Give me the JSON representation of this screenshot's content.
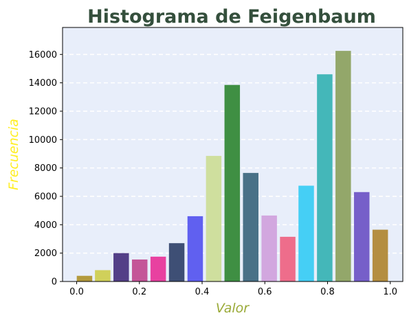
{
  "chart_data": {
    "type": "bar",
    "title": "Histograma de Feigenbaum",
    "xlabel": "Valor",
    "ylabel": "Frecuencia",
    "x": [
      0.025,
      0.083,
      0.142,
      0.201,
      0.26,
      0.319,
      0.378,
      0.437,
      0.496,
      0.555,
      0.614,
      0.673,
      0.732,
      0.791,
      0.85,
      0.909,
      0.968
    ],
    "values": [
      400,
      800,
      2000,
      1550,
      1750,
      2700,
      4600,
      8850,
      13850,
      7650,
      4650,
      3150,
      6750,
      14600,
      16250,
      6300,
      3650
    ],
    "colors": [
      "#b39a3d",
      "#d0d05a",
      "#533f87",
      "#c45598",
      "#e841a0",
      "#3e4f75",
      "#6060f0",
      "#cfdf9e",
      "#3f8f43",
      "#497187",
      "#d2a7df",
      "#ee6d8b",
      "#45cff5",
      "#44b7b9",
      "#93a76a",
      "#765fc9",
      "#b48e41"
    ],
    "xlim": [
      -0.045,
      1.04
    ],
    "ylim": [
      0,
      17900
    ],
    "xticks": [
      0.0,
      0.2,
      0.4,
      0.6,
      0.8,
      1.0
    ],
    "xtick_labels": [
      "0.0",
      "0.2",
      "0.4",
      "0.6",
      "0.8",
      "1.0"
    ],
    "yticks": [
      0,
      2000,
      4000,
      6000,
      8000,
      10000,
      12000,
      14000,
      16000
    ],
    "ytick_labels": [
      "0",
      "2000",
      "4000",
      "6000",
      "8000",
      "10000",
      "12000",
      "14000",
      "16000"
    ],
    "grid": "horizontal-dashed",
    "plot_background": "#e8eefa",
    "legend": "none"
  }
}
